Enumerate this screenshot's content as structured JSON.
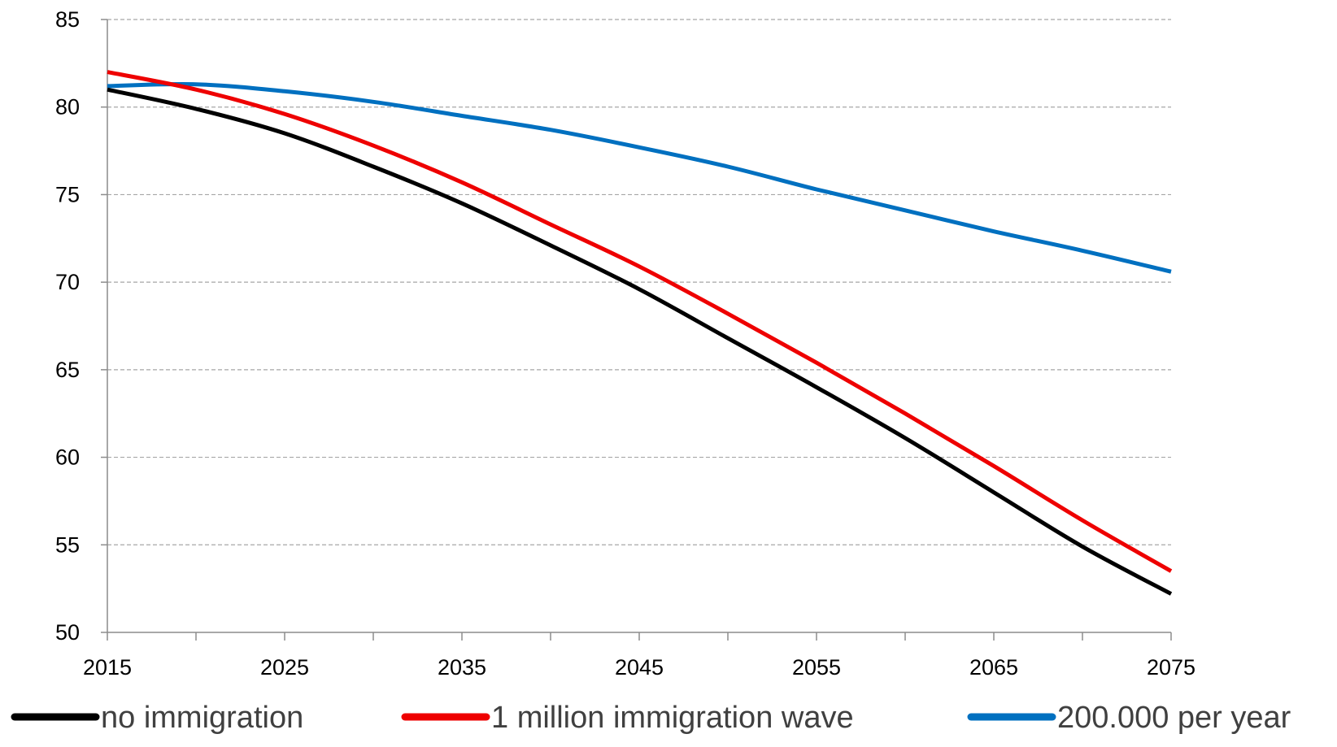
{
  "chart_data": {
    "type": "line",
    "title": "",
    "xlabel": "",
    "ylabel": "",
    "xlim": [
      2015,
      2075
    ],
    "ylim": [
      50,
      85
    ],
    "x_ticks": [
      "2015",
      "2025",
      "2035",
      "2045",
      "2055",
      "2065",
      "2075"
    ],
    "y_ticks": [
      "50",
      "55",
      "60",
      "65",
      "70",
      "75",
      "80",
      "85"
    ],
    "grid": "horizontal dashed",
    "legend_position": "bottom",
    "x": [
      2015,
      2020,
      2025,
      2030,
      2035,
      2040,
      2045,
      2050,
      2055,
      2060,
      2065,
      2070,
      2075
    ],
    "series": [
      {
        "name": "no immigration",
        "color": "#000000",
        "values": [
          81.0,
          79.9,
          78.5,
          76.6,
          74.5,
          72.1,
          69.6,
          66.8,
          64.0,
          61.1,
          58.0,
          54.9,
          52.2
        ]
      },
      {
        "name": "1 million immigration wave",
        "color": "#ee0000",
        "values": [
          82.0,
          81.0,
          79.6,
          77.8,
          75.7,
          73.3,
          70.9,
          68.2,
          65.4,
          62.5,
          59.5,
          56.4,
          53.5
        ]
      },
      {
        "name": "200.000 per year",
        "color": "#0070c0",
        "values": [
          81.2,
          81.3,
          80.9,
          80.3,
          79.5,
          78.7,
          77.7,
          76.6,
          75.3,
          74.1,
          72.9,
          71.8,
          70.6
        ]
      }
    ]
  }
}
